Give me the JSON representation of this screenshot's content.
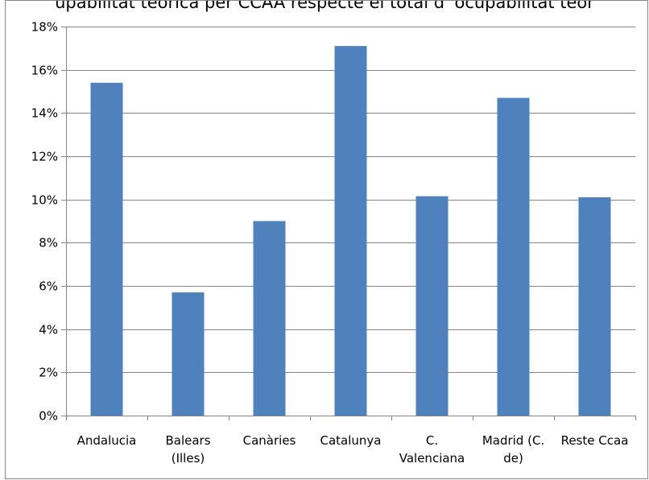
{
  "chart_data": {
    "type": "bar",
    "title": "upabilitat teòrica per CCAA respecte el total d' ocupabilitat teòr",
    "categories": [
      "Andalucia",
      "Balears (Illes)",
      "Canàries",
      "Catalunya",
      "C. Valenciana",
      "Madrid (C. de)",
      "Reste Ccaa"
    ],
    "category_lines": [
      [
        "Andalucia"
      ],
      [
        "Balears",
        "(Illes)"
      ],
      [
        "Canàries"
      ],
      [
        "Catalunya"
      ],
      [
        "C.",
        "Valenciana"
      ],
      [
        "Madrid (C.",
        "de)"
      ],
      [
        "Reste Ccaa"
      ]
    ],
    "values": [
      15.4,
      5.7,
      9.0,
      17.1,
      10.15,
      14.7,
      10.1
    ],
    "ylim": [
      0,
      18
    ],
    "yticks": [
      0,
      2,
      4,
      6,
      8,
      10,
      12,
      14,
      16,
      18
    ],
    "ytick_labels": [
      "0%",
      "2%",
      "4%",
      "6%",
      "8%",
      "10%",
      "12%",
      "14%",
      "16%",
      "18%"
    ],
    "bar_color": "#4f81bd",
    "grid": true,
    "legend": "none"
  }
}
